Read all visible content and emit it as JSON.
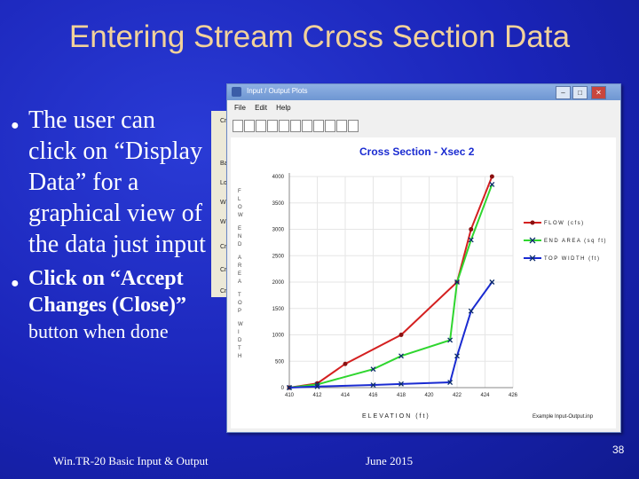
{
  "slide": {
    "title": "Entering Stream Cross Section Data",
    "bullet1_lines": [
      "The user can",
      "click on “Display",
      "Data” for a",
      "graphical view of",
      "the data just input"
    ],
    "bullet2_lines": [
      "Click on “Accept",
      "Changes (Close)”",
      "button when done"
    ],
    "footer_left": "Win.TR-20 Basic Input & Output",
    "footer_date": "June 2015",
    "page_number": "38"
  },
  "dialog_bg": {
    "labels": [
      "Cr",
      "Ba",
      "Lo",
      "W",
      "W",
      "Cr",
      "Cr",
      "Cr"
    ]
  },
  "window": {
    "title": "Input / Output Plots",
    "menu": [
      "File",
      "Edit",
      "Help"
    ],
    "buttons": [
      "minimize",
      "maximize",
      "close"
    ],
    "toolbar_icons": [
      "save-icon",
      "print-icon",
      "copy-icon",
      "copy-icon",
      "chart-icon",
      "chart-icon",
      "chart-icon",
      "chart-icon",
      "chart-icon",
      "chart-icon",
      "chart-icon"
    ]
  },
  "chart_data": {
    "type": "line",
    "title": "Cross Section - Xsec 2",
    "xlabel": "ELEVATION (ft)",
    "ylabel_left": "FLOW END AREA TOP WIDTH",
    "x_ticks": [
      "410",
      "412",
      "414",
      "416",
      "418",
      "420",
      "422",
      "424",
      "426"
    ],
    "y_ticks": [
      "0",
      "500",
      "1000",
      "1500",
      "2000",
      "2500",
      "3000",
      "3500",
      "4000"
    ],
    "ylim": [
      0,
      4000
    ],
    "xlim": [
      410,
      426
    ],
    "footnote": "Example Input-Output.inp",
    "series": [
      {
        "name": "FLOW (cfs)",
        "color": "#d42020",
        "marker": "circle",
        "x": [
          410,
          412,
          414,
          418,
          422,
          423,
          424.5
        ],
        "y": [
          0,
          80,
          450,
          1000,
          2000,
          3000,
          4000
        ]
      },
      {
        "name": "END AREA (sq ft)",
        "color": "#2fd62f",
        "marker": "x",
        "x": [
          410,
          412,
          416,
          418,
          421.5,
          422,
          423,
          424.5
        ],
        "y": [
          0,
          60,
          350,
          600,
          900,
          2000,
          2800,
          3850
        ]
      },
      {
        "name": "TOP WIDTH (ft)",
        "color": "#1a2bd1",
        "marker": "x",
        "x": [
          410,
          412,
          416,
          418,
          421.5,
          422,
          423,
          424.5
        ],
        "y": [
          0,
          20,
          50,
          70,
          100,
          600,
          1450,
          2000
        ]
      }
    ]
  }
}
